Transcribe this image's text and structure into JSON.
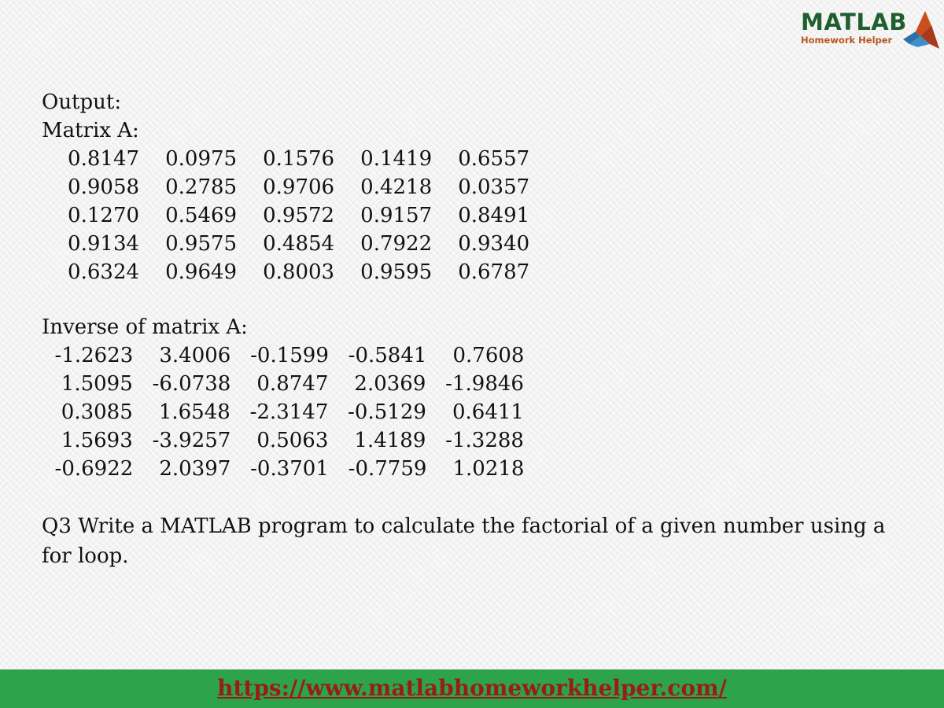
{
  "logo": {
    "word": "MATLAB",
    "subtitle": "Homework Helper",
    "word_color": "#1f5e2f",
    "subtitle_color": "#b7561f"
  },
  "content": {
    "output_label": "Output:",
    "matrix_a_label": "Matrix A:",
    "matrix_a_rows": [
      "    0.8147    0.0975    0.1576    0.1419    0.6557",
      "    0.9058    0.2785    0.9706    0.4218    0.0357",
      "    0.1270    0.5469    0.9572    0.9157    0.8491",
      "    0.9134    0.9575    0.4854    0.7922    0.9340",
      "    0.6324    0.9649    0.8003    0.9595    0.6787"
    ],
    "inverse_label": "Inverse of matrix A:",
    "inverse_rows": [
      "  -1.2623    3.4006   -0.1599   -0.5841    0.7608",
      "   1.5095   -6.0738    0.8747    2.0369   -1.9846",
      "   0.3085    1.6548   -2.3147   -0.5129    0.6411",
      "   1.5693   -3.9257    0.5063    1.4189   -1.3288",
      "  -0.6922    2.0397   -0.3701   -0.7759    1.0218"
    ],
    "question": "Q3  Write a MATLAB program to calculate the factorial of a given number using a for loop."
  },
  "footer": {
    "url": "https://www.matlabhomeworkhelper.com/",
    "background": "#2da44a",
    "link_color": "#9a1b1b"
  }
}
